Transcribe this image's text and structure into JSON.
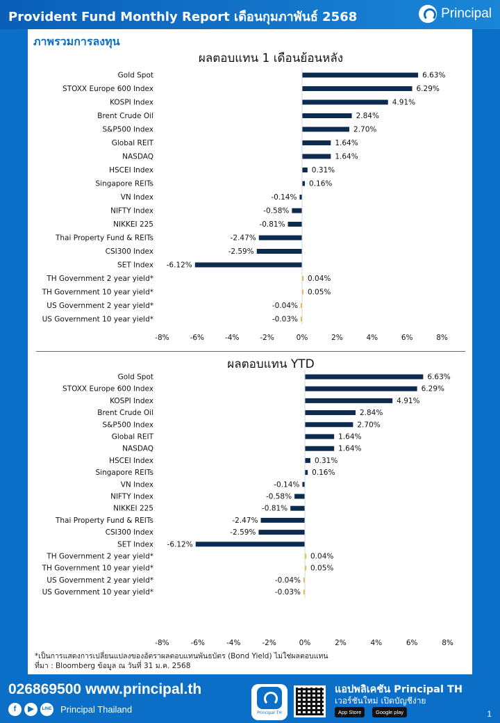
{
  "header": {
    "title": "Provident Fund Monthly Report เดือนกุมภาพันธ์ 2568",
    "brand": "Principal",
    "brand_mark": "®"
  },
  "section_title": "ภาพรวมการลงทุน",
  "chart_data": [
    {
      "type": "bar",
      "orientation": "horizontal",
      "title": "ผลตอบแทน 1 เดือนย้อนหลัง",
      "categories": [
        "Gold Spot",
        "STOXX Europe 600 Index",
        "KOSPI Index",
        "Brent Crude Oil",
        "S&P500 Index",
        "Global REIT",
        "NASDAQ",
        "HSCEI Index",
        "Singapore REITs",
        "VN Index",
        "NIFTY Index",
        "NIKKEI 225",
        "Thai Property Fund & REITs",
        "CSI300 Index",
        "SET Index",
        "TH Government 2 year yield*",
        "TH Government 10 year yield*",
        "US Government 2 year yield*",
        "US Government 10 year yield*"
      ],
      "values": [
        6.63,
        6.29,
        4.91,
        2.84,
        2.7,
        1.64,
        1.64,
        0.31,
        0.16,
        -0.14,
        -0.58,
        -0.81,
        -2.47,
        -2.59,
        -6.12,
        0.04,
        0.05,
        -0.04,
        -0.03
      ],
      "value_labels": [
        "6.63%",
        "6.29%",
        "4.91%",
        "2.84%",
        "2.70%",
        "1.64%",
        "1.64%",
        "0.31%",
        "0.16%",
        "-0.14%",
        "-0.58%",
        "-0.81%",
        "-2.47%",
        "-2.59%",
        "-6.12%",
        "0.04%",
        "0.05%",
        "-0.04%",
        "-0.03%"
      ],
      "xlim": [
        -8,
        8
      ],
      "ticks": [
        "-8%",
        "-6%",
        "-4%",
        "-2%",
        "0%",
        "2%",
        "4%",
        "6%",
        "8%"
      ],
      "colors": {
        "index": "#0d2a4f",
        "yield": "#f0b323"
      }
    },
    {
      "type": "bar",
      "orientation": "horizontal",
      "title": "ผลตอบแทน YTD",
      "categories": [
        "Gold Spot",
        "STOXX Europe 600 Index",
        "KOSPI Index",
        "Brent Crude Oil",
        "S&P500 Index",
        "Global REIT",
        "NASDAQ",
        "HSCEI Index",
        "Singapore REITs",
        "VN Index",
        "NIFTY Index",
        "NIKKEI 225",
        "Thai Property Fund & REITs",
        "CSI300 Index",
        "SET Index",
        "TH Government 2 year yield*",
        "TH Government 10 year yield*",
        "US Government 2 year yield*",
        "US Government 10 year yield*"
      ],
      "values": [
        6.63,
        6.29,
        4.91,
        2.84,
        2.7,
        1.64,
        1.64,
        0.31,
        0.16,
        -0.14,
        -0.58,
        -0.81,
        -2.47,
        -2.59,
        -6.12,
        0.04,
        0.05,
        -0.04,
        -0.03
      ],
      "value_labels": [
        "6.63%",
        "6.29%",
        "4.91%",
        "2.84%",
        "2.70%",
        "1.64%",
        "1.64%",
        "0.31%",
        "0.16%",
        "-0.14%",
        "-0.58%",
        "-0.81%",
        "-2.47%",
        "-2.59%",
        "-6.12%",
        "0.04%",
        "0.05%",
        "-0.04%",
        "-0.03%"
      ],
      "xlim": [
        -8,
        8
      ],
      "ticks": [
        "-8%",
        "-6%",
        "-4%",
        "-2%",
        "0%",
        "2%",
        "4%",
        "6%",
        "8%"
      ],
      "colors": {
        "index": "#0d2a4f",
        "yield": "#f0b323"
      }
    }
  ],
  "notes": {
    "line1": "*เป็นการแสดงการเปลี่ยนแปลงของอัตราผลตอบแทนพันธบัตร (Bond Yield) ไม่ใช่ผลตอบแทน",
    "line2": "ที่มา : Bloomberg ข้อมูล ณ วันที่ 31 ม.ค. 2568"
  },
  "footer": {
    "phone_web": "026869500 www.principal.th",
    "social_name": "Principal Thailand",
    "social_icons": [
      "facebook-icon",
      "youtube-icon",
      "line-icon"
    ],
    "app_icon_caption": "Principal TH",
    "app_title": "แอปพลิเคชัน Principal TH",
    "app_subtitle": "เวอร์ชันใหม่ เปิดบัญชีง่าย",
    "app_store": "App Store",
    "google_play": "Google play",
    "page_number": "1"
  }
}
